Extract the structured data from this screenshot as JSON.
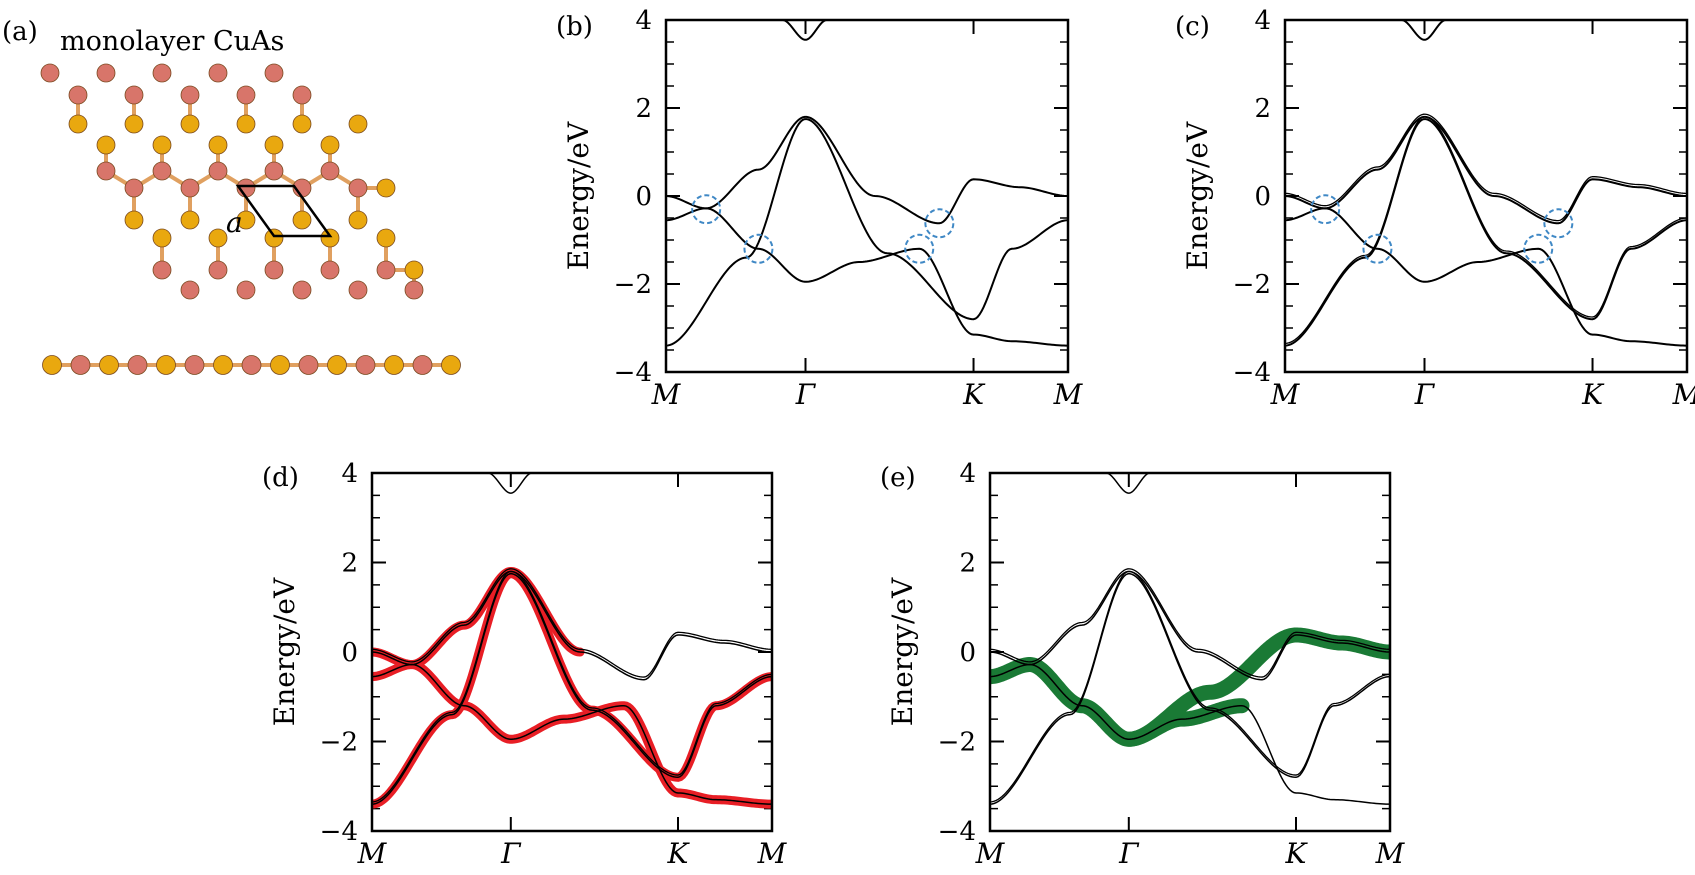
{
  "figure": {
    "panel_a": {
      "label": "(a)",
      "title": "monolayer CuAs",
      "lattice_label": "a",
      "atoms": [
        {
          "element": "Cu",
          "color": "#e9a80f"
        },
        {
          "element": "As",
          "color": "#d8756a"
        }
      ]
    },
    "colors": {
      "band": "#000000",
      "highlight_red": "#e81e25",
      "highlight_green": "#1a7a35",
      "circle": "#3f88c5"
    }
  },
  "chart_data": [
    {
      "panel": "(b)",
      "type": "line",
      "ylabel": "Energy/eV",
      "ylim": [
        -4,
        4
      ],
      "yticks": [
        "4",
        "2",
        "0",
        "−2",
        "−4"
      ],
      "kpoints": [
        "M",
        "Γ",
        "K",
        "M"
      ],
      "highlight": "none",
      "soc": false,
      "circles": [
        [
          0.1,
          -0.3
        ],
        [
          0.23,
          -1.2
        ],
        [
          0.63,
          -1.2
        ],
        [
          0.68,
          -0.62
        ]
      ]
    },
    {
      "panel": "(c)",
      "type": "line",
      "ylabel": "Energy/eV",
      "ylim": [
        -4,
        4
      ],
      "yticks": [
        "4",
        "2",
        "0",
        "−2",
        "−4"
      ],
      "kpoints": [
        "M",
        "Γ",
        "K",
        "M"
      ],
      "highlight": "none",
      "soc": true,
      "circles": [
        [
          0.1,
          -0.3
        ],
        [
          0.23,
          -1.2
        ],
        [
          0.63,
          -1.2
        ],
        [
          0.68,
          -0.62
        ]
      ]
    },
    {
      "panel": "(d)",
      "type": "line",
      "ylabel": "Energy/eV",
      "ylim": [
        -4,
        4
      ],
      "yticks": [
        "4",
        "2",
        "0",
        "−2",
        "−4"
      ],
      "kpoints": [
        "M",
        "Γ",
        "K",
        "M"
      ],
      "highlight": "red",
      "soc": true,
      "circles": []
    },
    {
      "panel": "(e)",
      "type": "line",
      "ylabel": "Energy/eV",
      "ylim": [
        -4,
        4
      ],
      "yticks": [
        "4",
        "2",
        "0",
        "−2",
        "−4"
      ],
      "kpoints": [
        "M",
        "Γ",
        "K",
        "M"
      ],
      "highlight": "green",
      "soc": true,
      "circles": []
    }
  ]
}
